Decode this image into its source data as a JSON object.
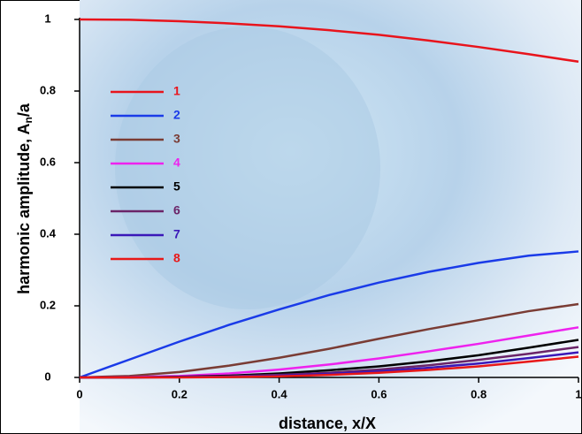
{
  "chart_data": {
    "type": "line",
    "xlabel": "distance, x/X",
    "ylabel": [
      "harmonic amplitude, A",
      "n",
      "/a"
    ],
    "x": [
      0,
      0.1,
      0.2,
      0.3,
      0.4,
      0.5,
      0.6,
      0.7,
      0.8,
      0.9,
      1
    ],
    "series": [
      {
        "name": "1",
        "color": "#e8141c",
        "values": [
          1,
          0.999,
          0.995,
          0.989,
          0.981,
          0.97,
          0.957,
          0.941,
          0.923,
          0.903,
          0.882
        ]
      },
      {
        "name": "2",
        "color": "#1a3be8",
        "values": [
          0,
          0.05,
          0.1,
          0.147,
          0.19,
          0.23,
          0.265,
          0.295,
          0.32,
          0.34,
          0.352
        ]
      },
      {
        "name": "3",
        "color": "#7a3c34",
        "values": [
          0,
          0.004,
          0.015,
          0.033,
          0.055,
          0.08,
          0.108,
          0.135,
          0.16,
          0.185,
          0.205
        ]
      },
      {
        "name": "4",
        "color": "#ee22ee",
        "values": [
          0,
          0.001,
          0.004,
          0.011,
          0.022,
          0.036,
          0.053,
          0.073,
          0.094,
          0.117,
          0.14
        ]
      },
      {
        "name": "5",
        "color": "#000000",
        "values": [
          0,
          0,
          0.002,
          0.005,
          0.011,
          0.02,
          0.031,
          0.045,
          0.062,
          0.083,
          0.105
        ]
      },
      {
        "name": "6",
        "color": "#6b2468",
        "values": [
          0,
          0,
          0.001,
          0.003,
          0.007,
          0.013,
          0.022,
          0.034,
          0.049,
          0.066,
          0.085
        ]
      },
      {
        "name": "7",
        "color": "#3a18b8",
        "values": [
          0,
          0,
          0.001,
          0.002,
          0.005,
          0.01,
          0.017,
          0.027,
          0.039,
          0.054,
          0.07
        ]
      },
      {
        "name": "8",
        "color": "#e81818",
        "values": [
          0,
          0,
          0,
          0.001,
          0.003,
          0.007,
          0.013,
          0.021,
          0.031,
          0.044,
          0.058
        ]
      }
    ],
    "xlim": [
      0,
      1
    ],
    "xticks": [
      0,
      0.2,
      0.4,
      0.6,
      0.8,
      1
    ],
    "ylim": [
      0,
      1
    ],
    "yticks": [
      0,
      0.2,
      0.4,
      0.6,
      0.8,
      1
    ]
  }
}
